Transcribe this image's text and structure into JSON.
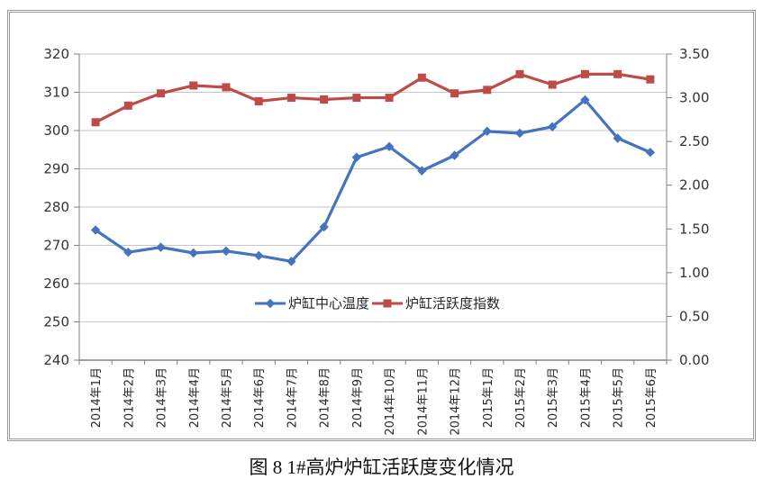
{
  "figure": {
    "caption": "图 8  1#高炉炉缸活跃度变化情况"
  },
  "chart_data": {
    "type": "line",
    "title": "",
    "xlabel": "",
    "ylabel_left": "",
    "ylabel_right": "",
    "grid": true,
    "legend_position": "inside-bottom-center",
    "categories": [
      "2014年1月",
      "2014年2月",
      "2014年3月",
      "2014年4月",
      "2014年5月",
      "2014年6月",
      "2014年7月",
      "2014年8月",
      "2014年9月",
      "2014年10月",
      "2014年11月",
      "2014年12月",
      "2015年1月",
      "2015年2月",
      "2015年3月",
      "2015年4月",
      "2015年5月",
      "2015年6月"
    ],
    "series": [
      {
        "name": "炉缸中心温度",
        "axis": "left",
        "color": "#4673BE",
        "marker": "diamond",
        "values": [
          274.0,
          268.2,
          269.5,
          268.0,
          268.5,
          267.3,
          265.8,
          274.8,
          293.0,
          295.8,
          289.5,
          293.5,
          299.8,
          299.3,
          301.0,
          308.0,
          298.0,
          294.3
        ]
      },
      {
        "name": "炉缸活跃度指数",
        "axis": "right",
        "color": "#BE4B48",
        "marker": "square",
        "values": [
          2.72,
          2.91,
          3.05,
          3.14,
          3.12,
          2.96,
          3.0,
          2.98,
          3.0,
          3.0,
          3.23,
          3.05,
          3.09,
          3.27,
          3.15,
          3.27,
          3.27,
          3.21
        ]
      }
    ],
    "left_axis": {
      "min": 240,
      "max": 320,
      "step": 10,
      "ticks": [
        "240",
        "250",
        "260",
        "270",
        "280",
        "290",
        "300",
        "310",
        "320"
      ]
    },
    "right_axis": {
      "min": 0,
      "max": 3.5,
      "step": 0.5,
      "ticks": [
        "0.00",
        "0.50",
        "1.00",
        "1.50",
        "2.00",
        "2.50",
        "3.00",
        "3.50"
      ]
    },
    "styles": {
      "gridline_color": "#C6C6C6",
      "axis_color": "#808080",
      "tick_label_color": "#333333",
      "x_label_color": "#262626",
      "background": "#FFFFFF"
    }
  }
}
